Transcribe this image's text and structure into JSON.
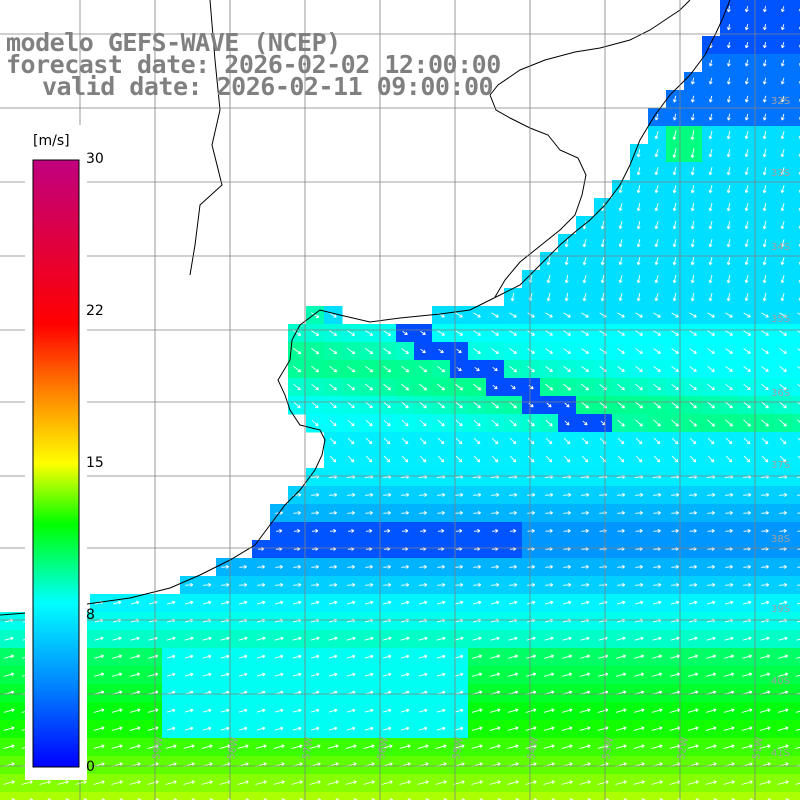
{
  "header": {
    "model_line": "modelo GEFS-WAVE (NCEP)",
    "forecast_line": "forecast date: 2026-02-02 12:00:00",
    "valid_line": "valid date: 2026-02-11 09:00:00"
  },
  "colorbar": {
    "unit": "[m/s]",
    "ticks": [
      {
        "value": 30,
        "label": "30"
      },
      {
        "value": 22,
        "label": "22"
      },
      {
        "value": 15,
        "label": "15"
      },
      {
        "value": 8,
        "label": "8"
      },
      {
        "value": 0,
        "label": "0"
      }
    ],
    "colors": [
      "#0000ff",
      "#00a0ff",
      "#00ffff",
      "#00ff00",
      "#ffff00",
      "#ff8000",
      "#ff0000",
      "#c00080"
    ]
  },
  "lat_labels": [
    "32S",
    "33S",
    "34S",
    "35S",
    "36S",
    "37S",
    "38S",
    "39S",
    "40S",
    "41S"
  ],
  "lon_labels": [
    "60W",
    "59W",
    "58W",
    "57W",
    "56W",
    "55W",
    "54W",
    "53W",
    "52W",
    "51W"
  ],
  "colors": {
    "land": "#ffffff",
    "coast": "#000000",
    "grid": "#808080",
    "arrows": "#ffffff"
  }
}
